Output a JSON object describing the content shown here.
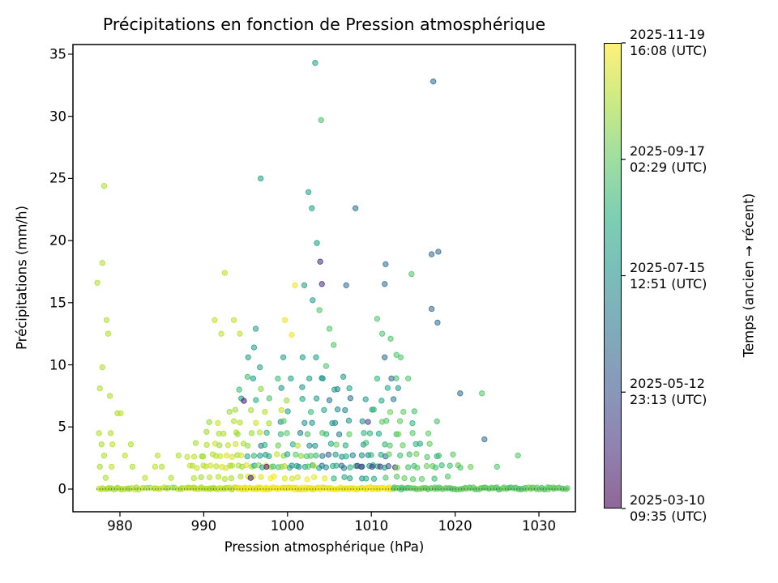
{
  "figure": {
    "background": "#ffffff",
    "spine_color": "#000000"
  },
  "chart_data": {
    "type": "scatter",
    "title": "Précipitations en fonction de Pression atmosphérique",
    "xlabel": "Pression atmosphérique (hPa)",
    "ylabel": "Précipitations (mm/h)",
    "xlim": [
      974.4,
      1034.4
    ],
    "ylim": [
      -1.85,
      35.9
    ],
    "xticks": [
      980,
      990,
      1000,
      1010,
      1020,
      1030
    ],
    "yticks": [
      0,
      5,
      10,
      15,
      20,
      25,
      30,
      35
    ],
    "grid": false,
    "marker": {
      "radius_px": 3.2,
      "alpha": 0.6,
      "colormap": "viridis"
    },
    "zero_line": {
      "y": 0,
      "x0": 977.2,
      "x1": 1033.6,
      "style": "dotted",
      "color": "#222222"
    },
    "colorbar": {
      "label": "Temps (ancien → récent)",
      "position": "right",
      "ticks": [
        {
          "t": 1.0,
          "date": "2025-11-19",
          "time": "16:08 (UTC)"
        },
        {
          "t": 0.75,
          "date": "2025-09-17",
          "time": "02:29 (UTC)"
        },
        {
          "t": 0.5,
          "date": "2025-07-15",
          "time": "12:51 (UTC)"
        },
        {
          "t": 0.25,
          "date": "2025-05-12",
          "time": "23:13 (UTC)"
        },
        {
          "t": 0.0,
          "date": "2025-03-10",
          "time": "09:35 (UTC)"
        }
      ],
      "viridis_stops": [
        "#440154",
        "#472d7b",
        "#3b528b",
        "#2c728e",
        "#21918c",
        "#27ad81",
        "#5ec962",
        "#aadc32",
        "#fde725"
      ],
      "gradient_blended_bottom_to_top": [
        "#8f6798",
        "#9181b0",
        "#8997b9",
        "#80aabb",
        "#7abdba",
        "#7dceb3",
        "#9edea1",
        "#ccea84",
        "#fef17c"
      ]
    },
    "points": [
      [
        1003.3,
        34.3,
        0.55
      ],
      [
        1017.4,
        32.8,
        0.33
      ],
      [
        1004.0,
        29.7,
        0.7
      ],
      [
        996.8,
        25.0,
        0.55
      ],
      [
        978.1,
        24.4,
        0.88
      ],
      [
        1002.5,
        23.9,
        0.55
      ],
      [
        1002.9,
        22.6,
        0.55
      ],
      [
        1008.1,
        22.6,
        0.35
      ],
      [
        1003.5,
        19.8,
        0.55
      ],
      [
        1018.0,
        19.1,
        0.33
      ],
      [
        1003.9,
        18.3,
        0.13
      ],
      [
        977.9,
        18.2,
        0.88
      ],
      [
        1011.7,
        18.1,
        0.35
      ],
      [
        1017.2,
        18.9,
        0.35
      ],
      [
        992.5,
        17.4,
        0.9
      ],
      [
        1014.8,
        17.3,
        0.72
      ],
      [
        977.3,
        16.6,
        0.88
      ],
      [
        1004.1,
        16.5,
        0.13
      ],
      [
        1011.6,
        16.5,
        0.35
      ],
      [
        1000.9,
        16.4,
        0.97
      ],
      [
        1002.0,
        16.4,
        0.55
      ],
      [
        1007.0,
        16.4,
        0.35
      ],
      [
        1003.0,
        15.2,
        0.55
      ],
      [
        1017.2,
        14.5,
        0.35
      ],
      [
        1003.8,
        14.4,
        0.72
      ],
      [
        978.4,
        13.6,
        0.88
      ],
      [
        991.3,
        13.6,
        0.9
      ],
      [
        993.6,
        13.6,
        0.9
      ],
      [
        999.7,
        13.6,
        0.97
      ],
      [
        1010.7,
        13.7,
        0.72
      ],
      [
        1017.9,
        13.4,
        0.35
      ],
      [
        996.2,
        12.9,
        0.55
      ],
      [
        1005.0,
        12.9,
        0.72
      ],
      [
        978.6,
        12.5,
        0.88
      ],
      [
        992.1,
        12.5,
        0.9
      ],
      [
        994.3,
        12.5,
        0.9
      ],
      [
        1000.5,
        12.4,
        0.97
      ],
      [
        1011.3,
        12.5,
        0.72
      ],
      [
        1012.3,
        12.1,
        0.72
      ],
      [
        996.0,
        11.4,
        0.55
      ],
      [
        1005.5,
        11.6,
        0.72
      ],
      [
        1013.0,
        10.8,
        0.72
      ],
      [
        995.3,
        10.6,
        0.55
      ],
      [
        999.5,
        10.6,
        0.55
      ],
      [
        1001.8,
        10.6,
        0.55
      ],
      [
        1003.4,
        10.6,
        0.55
      ],
      [
        1011.6,
        10.6,
        0.35
      ],
      [
        1013.5,
        10.6,
        0.72
      ],
      [
        1004.6,
        9.9,
        0.72
      ],
      [
        977.9,
        9.8,
        0.88
      ],
      [
        996.7,
        9.8,
        0.55
      ],
      [
        995.9,
        8.9,
        0.55
      ],
      [
        1000.4,
        8.9,
        0.55
      ],
      [
        1002.6,
        8.9,
        0.55
      ],
      [
        1004.2,
        8.9,
        0.55
      ],
      [
        1012.4,
        8.9,
        0.35
      ],
      [
        1014.4,
        8.9,
        0.72
      ],
      [
        977.6,
        8.1,
        0.88
      ],
      [
        1005.6,
        8.0,
        0.55
      ],
      [
        978.8,
        7.5,
        0.88
      ],
      [
        994.8,
        7.1,
        0.08
      ],
      [
        1020.6,
        7.7,
        0.35
      ],
      [
        1023.2,
        7.7,
        0.72
      ],
      [
        979.7,
        6.1,
        0.88
      ],
      [
        980.1,
        6.1,
        0.9
      ],
      [
        977.5,
        4.5,
        0.88
      ],
      [
        978.9,
        4.5,
        0.88
      ],
      [
        977.8,
        3.6,
        0.87
      ],
      [
        979.1,
        3.6,
        0.9
      ],
      [
        981.3,
        3.6,
        0.88
      ],
      [
        978.1,
        2.7,
        0.88
      ],
      [
        980.6,
        2.7,
        0.9
      ],
      [
        984.5,
        2.7,
        0.9
      ],
      [
        987.0,
        2.7,
        0.88
      ],
      [
        977.6,
        1.8,
        0.87
      ],
      [
        979.0,
        1.8,
        0.9
      ],
      [
        981.5,
        1.8,
        0.88
      ],
      [
        984.2,
        1.8,
        0.9
      ],
      [
        985.0,
        1.8,
        0.88
      ],
      [
        978.3,
        0.9,
        0.88
      ],
      [
        983.0,
        0.9,
        0.9
      ],
      [
        986.1,
        0.9,
        0.88
      ],
      [
        997.5,
        1.8,
        0.08
      ],
      [
        1008.8,
        1.8,
        0.2
      ],
      [
        1010.1,
        1.8,
        0.2
      ],
      [
        1009.6,
        5.4,
        0.2
      ],
      [
        995.6,
        0.9,
        0.08
      ],
      [
        1023.5,
        4.0,
        0.35
      ],
      [
        1027.5,
        2.7,
        0.72
      ],
      [
        1025.0,
        1.8,
        0.72
      ]
    ],
    "dense_rows": [
      {
        "y": 0.05,
        "yjitter": 0.09,
        "segments": [
          [
            977.4,
            981.5,
            18,
            0.84,
            0.92
          ],
          [
            981.5,
            988,
            20,
            0.84,
            0.92
          ],
          [
            988,
            994,
            30,
            0.86,
            0.94
          ],
          [
            994,
            1012.5,
            120,
            0.95,
            1.0
          ],
          [
            1012.5,
            1033.5,
            95,
            0.7,
            0.8
          ]
        ]
      },
      {
        "y": 0.9,
        "yjitter": 0.12,
        "segments": [
          [
            988.5,
            994.5,
            7,
            0.85,
            0.94
          ],
          [
            994.5,
            1005,
            11,
            0.92,
            1.0
          ],
          [
            1005,
            1012,
            7,
            0.4,
            0.72
          ],
          [
            1012,
            1020,
            6,
            0.66,
            0.78
          ]
        ]
      },
      {
        "y": 1.8,
        "yjitter": 0.12,
        "segments": [
          [
            988,
            996,
            15,
            0.84,
            0.95
          ],
          [
            996,
            1004,
            18,
            0.45,
            1.0
          ],
          [
            1004,
            1013,
            17,
            0.15,
            0.65
          ],
          [
            1013,
            1022,
            12,
            0.64,
            0.8
          ]
        ]
      },
      {
        "y": 2.7,
        "yjitter": 0.12,
        "segments": [
          [
            988,
            995,
            11,
            0.84,
            0.95
          ],
          [
            995,
            1004,
            13,
            0.5,
            0.98
          ],
          [
            1004,
            1012,
            11,
            0.28,
            0.68
          ],
          [
            1012,
            1020,
            8,
            0.64,
            0.8
          ]
        ]
      },
      {
        "y": 3.6,
        "yjitter": 0.12,
        "segments": [
          [
            989,
            996,
            8,
            0.84,
            0.93
          ],
          [
            996,
            1008,
            10,
            0.4,
            0.9
          ],
          [
            1008,
            1018,
            8,
            0.55,
            0.78
          ]
        ]
      },
      {
        "y": 4.5,
        "yjitter": 0.12,
        "segments": [
          [
            990,
            997,
            7,
            0.84,
            0.93
          ],
          [
            997,
            1008,
            9,
            0.35,
            0.75
          ],
          [
            1008,
            1017,
            7,
            0.58,
            0.8
          ]
        ]
      },
      {
        "y": 5.4,
        "yjitter": 0.12,
        "segments": [
          [
            990,
            998,
            6,
            0.84,
            0.93
          ],
          [
            998,
            1010,
            8,
            0.4,
            0.75
          ],
          [
            1010,
            1018,
            5,
            0.64,
            0.8
          ]
        ]
      },
      {
        "y": 6.3,
        "yjitter": 0.12,
        "segments": [
          [
            992,
            1000,
            5,
            0.8,
            0.95
          ],
          [
            1000,
            1012,
            7,
            0.42,
            0.7
          ],
          [
            1012,
            1016,
            3,
            0.68,
            0.78
          ]
        ]
      },
      {
        "y": 7.2,
        "yjitter": 0.12,
        "segments": [
          [
            993,
            1002,
            5,
            0.5,
            0.92
          ],
          [
            1002,
            1014,
            6,
            0.35,
            0.7
          ]
        ]
      },
      {
        "y": 8.1,
        "yjitter": 0.12,
        "segments": [
          [
            994,
            1004,
            4,
            0.5,
            0.9
          ],
          [
            1004,
            1015,
            4,
            0.35,
            0.72
          ]
        ]
      },
      {
        "y": 9.0,
        "yjitter": 0.12,
        "segments": [
          [
            995,
            1005,
            3,
            0.48,
            0.7
          ],
          [
            1005,
            1015,
            3,
            0.35,
            0.72
          ]
        ]
      }
    ]
  }
}
